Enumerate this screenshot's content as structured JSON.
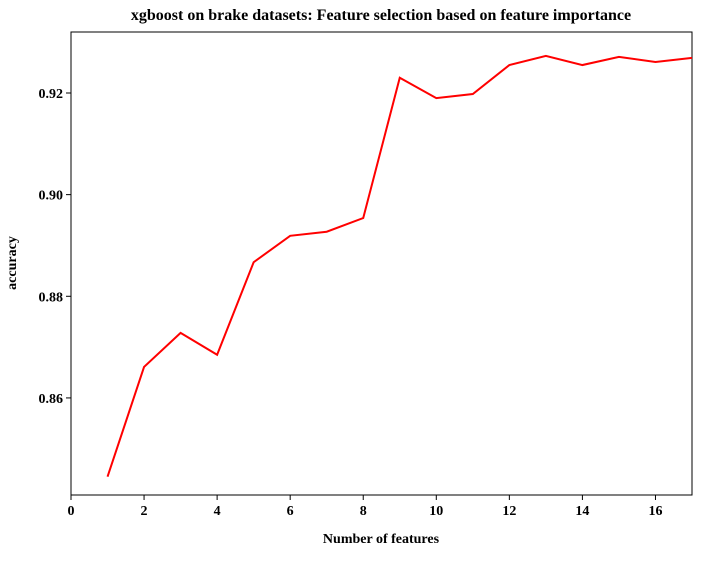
{
  "chart_data": {
    "type": "line",
    "title": "xgboost on brake datasets: Feature selection based on feature importance",
    "xlabel": "Number of features",
    "ylabel": "accuracy",
    "x": [
      1,
      2,
      3,
      4,
      5,
      6,
      7,
      8,
      9,
      10,
      11,
      12,
      13,
      14,
      15,
      16,
      17
    ],
    "series": [
      {
        "name": "accuracy",
        "color": "#ff0000",
        "values": [
          0.8445,
          0.8661,
          0.8728,
          0.8685,
          0.8867,
          0.8919,
          0.8927,
          0.8954,
          0.923,
          0.919,
          0.9198,
          0.9255,
          0.9273,
          0.9255,
          0.9271,
          0.9261,
          0.9269
        ]
      }
    ],
    "xlim": [
      0,
      17
    ],
    "ylim": [
      0.8409,
      0.932
    ],
    "xticks": [
      0,
      2,
      4,
      6,
      8,
      10,
      12,
      14,
      16
    ],
    "yticks": [
      0.86,
      0.88,
      {
        "value": 0.9,
        "label": "0.90"
      },
      0.92
    ]
  }
}
